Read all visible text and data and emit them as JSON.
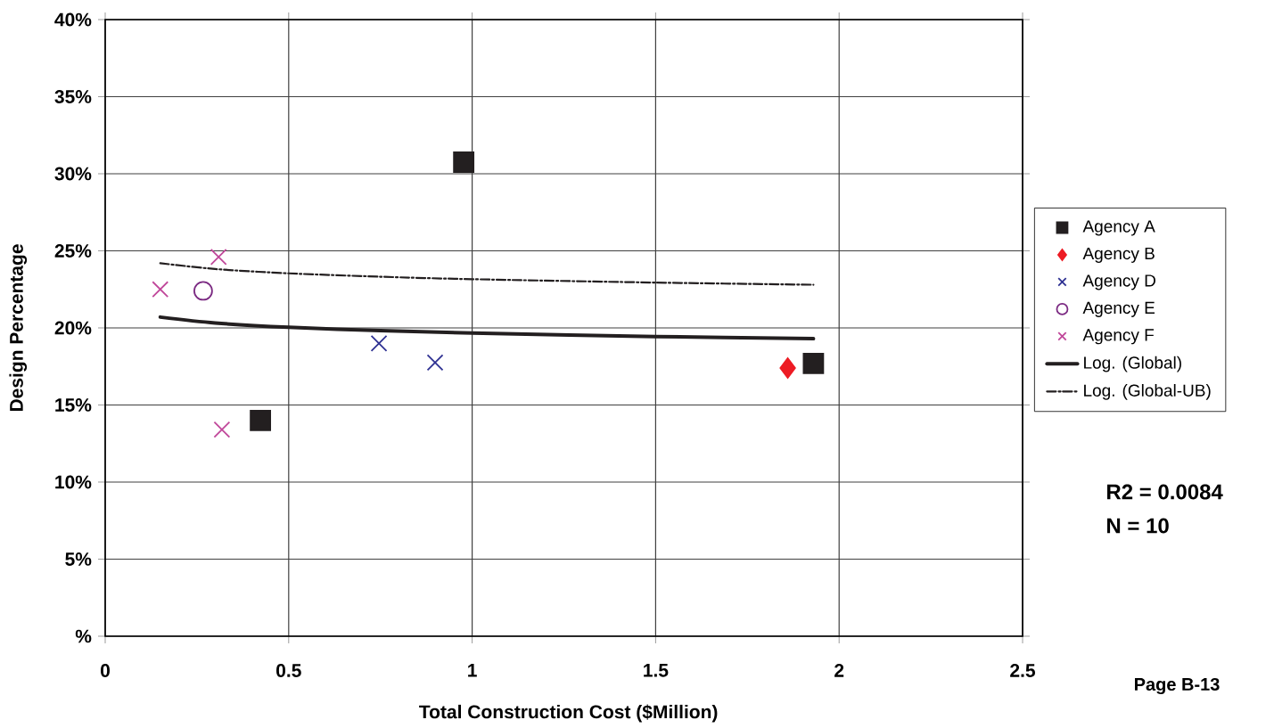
{
  "chart_data": {
    "type": "scatter",
    "xlabel": "Total Construction Cost ($Million)",
    "ylabel": "Design Percentage",
    "xlim": [
      0,
      2.5
    ],
    "ylim": [
      0,
      40
    ],
    "xticks": [
      0,
      0.5,
      1,
      1.5,
      2,
      2.5
    ],
    "yticks": [
      {
        "value": 0,
        "label": "%"
      },
      {
        "value": 5,
        "label": "5%"
      },
      {
        "value": 10,
        "label": "10%"
      },
      {
        "value": 15,
        "label": "15%"
      },
      {
        "value": 20,
        "label": "20%"
      },
      {
        "value": 25,
        "label": "25%"
      },
      {
        "value": 30,
        "label": "30%"
      },
      {
        "value": 35,
        "label": "35%"
      },
      {
        "value": 40,
        "label": "40%"
      }
    ],
    "grid": true,
    "legend": "right",
    "series": [
      {
        "name": "Agency A",
        "color": "#231f20",
        "marker": "square",
        "x": [
          0.977,
          0.423,
          1.93
        ],
        "values": [
          30.75,
          14.0,
          17.7
        ]
      },
      {
        "name": "Agency B",
        "color": "#ed1c24",
        "marker": "diamond",
        "x": [
          1.86
        ],
        "values": [
          17.4
        ]
      },
      {
        "name": "Agency D",
        "color": "#2e3192",
        "marker": "cross",
        "x": [
          0.746,
          0.899
        ],
        "values": [
          19.0,
          17.75
        ]
      },
      {
        "name": "Agency E",
        "color": "#7b2a82",
        "marker": "circle",
        "x": [
          0.267
        ],
        "values": [
          22.4
        ]
      },
      {
        "name": "Agency F",
        "color": "#c0479a",
        "marker": "cross",
        "x": [
          0.15,
          0.309,
          0.318
        ],
        "values": [
          22.5,
          24.6,
          13.4
        ]
      },
      {
        "name": "Log. (Global)",
        "type": "line",
        "color": "#231f20",
        "marker": "none",
        "line_style": "solid",
        "x": [
          0.15,
          0.3,
          0.5,
          0.75,
          1,
          1.5,
          1.93
        ],
        "values": [
          20.7,
          20.32,
          20.04,
          19.82,
          19.66,
          19.44,
          19.3
        ]
      },
      {
        "name": "Log. (Global-UB)",
        "type": "line",
        "color": "#231f20",
        "marker": "none",
        "line_style": "dashed",
        "x": [
          0.15,
          0.3,
          0.5,
          0.75,
          1,
          1.5,
          1.93
        ],
        "values": [
          24.2,
          23.82,
          23.54,
          23.32,
          23.16,
          22.94,
          22.8
        ]
      }
    ],
    "annotations": [
      "R2 = 0.0084",
      "N = 10",
      "Page B-13"
    ]
  }
}
